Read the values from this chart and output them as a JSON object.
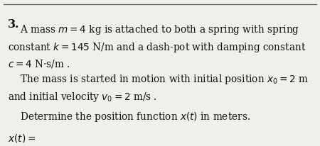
{
  "background_color": "#f0efeb",
  "top_border_color": "#555555",
  "number": "3.",
  "line1": "    A mass $m = 4$ kg is attached to both a spring with spring",
  "line2": "constant $k = 145$ N/m and a dash-pot with damping constant",
  "line3": "$c = 4$ N$\\cdot$s/m .",
  "line4": "    The mass is started in motion with initial position $x_0 = 2$ m",
  "line5": "and initial velocity $v_0 = 2$ m/s .",
  "line6": "    Determine the position function $x(t)$ in meters.",
  "line7": "$x(t) =$",
  "font_size": 9.8,
  "bold_font_size": 11.5,
  "text_color": "#111111"
}
